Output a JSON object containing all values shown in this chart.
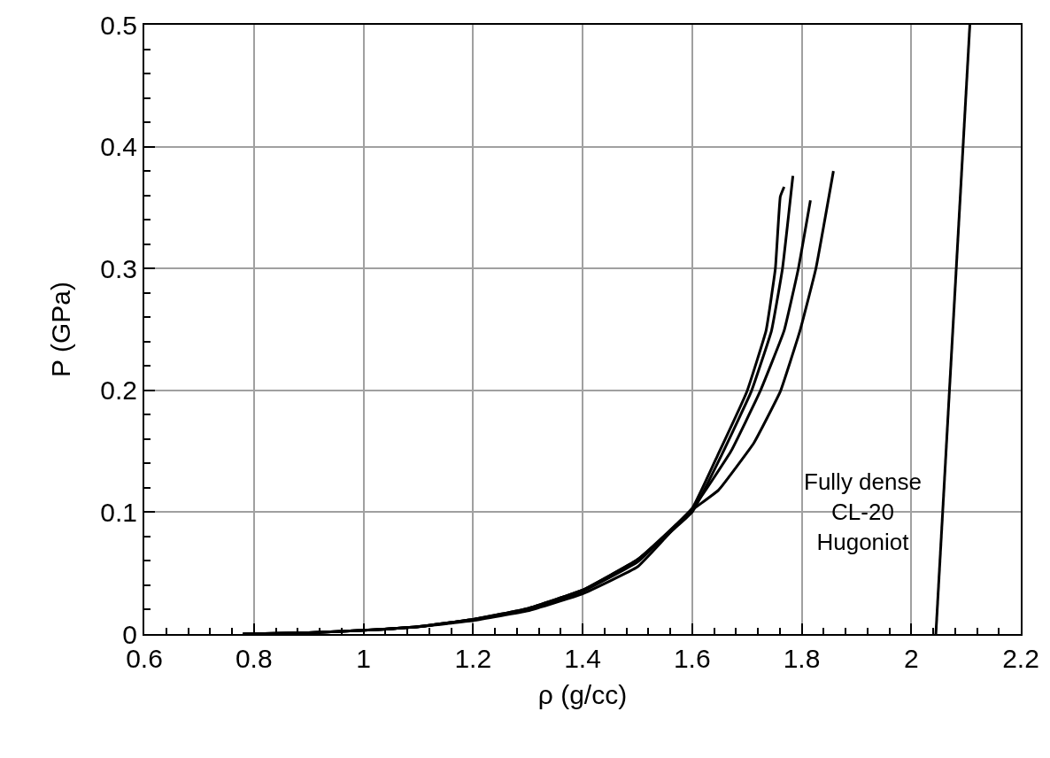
{
  "chart_data": {
    "type": "line",
    "xlabel": "ρ (g/cc)",
    "ylabel": "P (GPa)",
    "xlim": [
      0.6,
      2.2
    ],
    "xticks": [
      0.6,
      0.8,
      1,
      1.2,
      1.4,
      1.6,
      1.8,
      2,
      2.2
    ],
    "ylim": [
      0,
      0.5
    ],
    "yticks": [
      0,
      0.1,
      0.2,
      0.3,
      0.4,
      0.5
    ],
    "grid": true,
    "marker": "none",
    "line_style": "solid",
    "series": [
      {
        "color": "#000000",
        "x": [
          0.78,
          0.9,
          1.0,
          1.1,
          1.2,
          1.3,
          1.4,
          1.5,
          1.6,
          1.648,
          1.7,
          1.735,
          1.752,
          1.761,
          1.768
        ],
        "values": [
          0,
          0.001,
          0.003,
          0.006,
          0.012,
          0.021,
          0.036,
          0.061,
          0.103,
          0.148,
          0.199,
          0.249,
          0.3,
          0.359,
          0.367
        ]
      },
      {
        "color": "#000000",
        "x": [
          0.78,
          0.9,
          1.0,
          1.1,
          1.2,
          1.3,
          1.4,
          1.5,
          1.6,
          1.655,
          1.708,
          1.745,
          1.765,
          1.784
        ],
        "values": [
          0,
          0.001,
          0.003,
          0.006,
          0.012,
          0.021,
          0.036,
          0.061,
          0.1,
          0.148,
          0.199,
          0.249,
          0.3,
          0.376
        ]
      },
      {
        "color": "#000000",
        "x": [
          0.78,
          0.9,
          1.0,
          1.1,
          1.2,
          1.3,
          1.4,
          1.5,
          1.606,
          1.671,
          1.724,
          1.768,
          1.794,
          1.816
        ],
        "values": [
          0,
          0.001,
          0.003,
          0.006,
          0.012,
          0.02,
          0.035,
          0.059,
          0.106,
          0.15,
          0.199,
          0.249,
          0.3,
          0.356
        ]
      },
      {
        "color": "#000000",
        "x": [
          0.78,
          0.9,
          1.0,
          1.1,
          1.2,
          1.3,
          1.4,
          1.5,
          1.547,
          1.595,
          1.648,
          1.713,
          1.761,
          1.797,
          1.826,
          1.858
        ],
        "values": [
          0,
          0.001,
          0.003,
          0.006,
          0.011,
          0.019,
          0.033,
          0.055,
          0.077,
          0.1,
          0.118,
          0.157,
          0.199,
          0.249,
          0.3,
          0.38
        ]
      },
      {
        "color": "#000000",
        "x": [
          2.045,
          2.107
        ],
        "values": [
          0,
          0.5
        ]
      }
    ],
    "annotations": [
      "Fully dense\nCL-20\nHugoniot"
    ]
  }
}
